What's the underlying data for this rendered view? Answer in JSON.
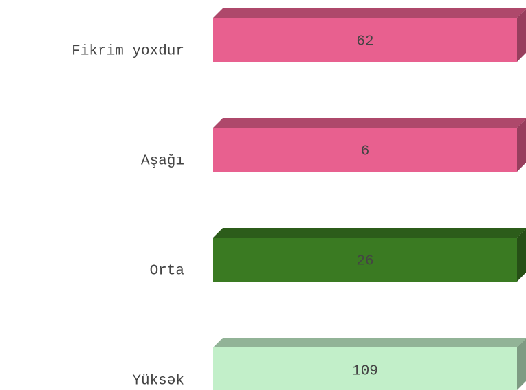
{
  "items": [
    {
      "label": "Fikrim yoxdur",
      "value": 62,
      "color": "#e8608f"
    },
    {
      "label": "Aşağı",
      "value": 6,
      "color": "#e8608f"
    },
    {
      "label": "Orta",
      "value": 26,
      "color": "#3a7a22"
    },
    {
      "label": "Yüksək",
      "value": 109,
      "color": "#c2efc9"
    }
  ]
}
